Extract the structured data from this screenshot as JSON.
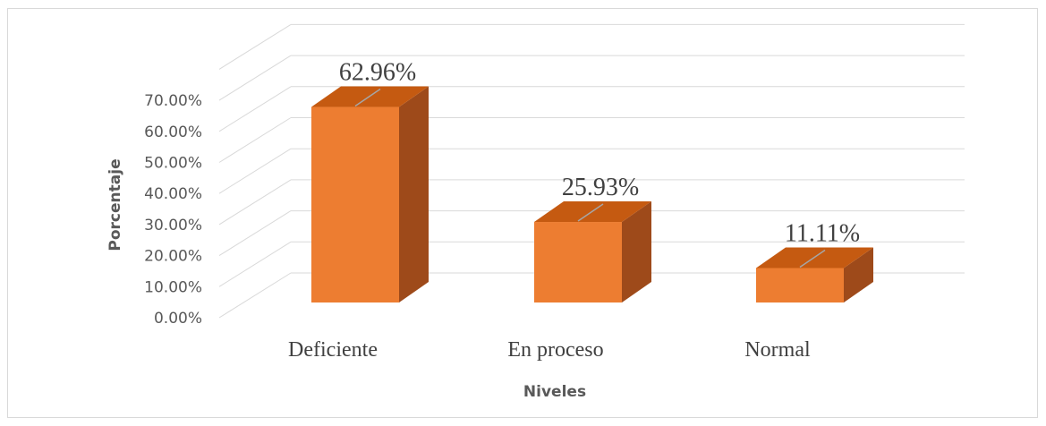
{
  "chart_data": {
    "type": "bar",
    "categories": [
      "Deficiente",
      "En proceso",
      "Normal"
    ],
    "values": [
      62.96,
      25.93,
      11.11
    ],
    "data_labels": [
      "62.96%",
      "25.93%",
      "11.11%"
    ],
    "y_ticks": [
      "0.00%",
      "10.00%",
      "20.00%",
      "30.00%",
      "40.00%",
      "50.00%",
      "60.00%",
      "70.00%"
    ],
    "xlabel": "Niveles",
    "ylabel": "Porcentaje",
    "ylim": [
      0,
      70
    ],
    "grid": true,
    "three_d": true,
    "colors": {
      "bar_front": "#ED7D31",
      "bar_side": "#9E4A1A",
      "bar_top": "#C55A11",
      "grid": "#d9d9d9"
    }
  }
}
